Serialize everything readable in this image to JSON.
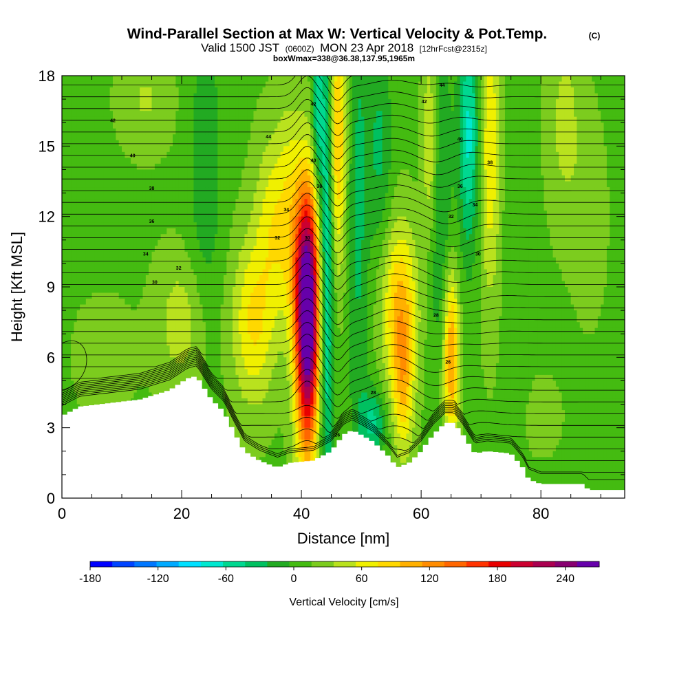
{
  "title": {
    "main": "Wind-Parallel Section at Max W: Vertical Velocity & Pot.Temp.",
    "copyright": "(C)",
    "line2_valid": "Valid 1500 JST",
    "line2_utc": "(0600Z)",
    "line2_date": "MON 23 Apr 2018",
    "line2_fcst": "[12hrFcst@2315z]",
    "line3": "boxWmax=338@36.38,137.95,1965m"
  },
  "chart_data": {
    "type": "heatmap",
    "xlabel": "Distance [nm]",
    "ylabel": "Height [Kft MSL]",
    "xlim": [
      0,
      94
    ],
    "ylim": [
      0,
      18
    ],
    "x_ticks": [
      0,
      20,
      40,
      60,
      80
    ],
    "y_ticks": [
      0,
      3,
      6,
      9,
      12,
      15,
      18
    ],
    "colorbar": {
      "label": "Vertical Velocity [cm/s]",
      "tick_labels": [
        "-180",
        "-120",
        "-60",
        "0",
        "60",
        "120",
        "180",
        "240"
      ],
      "tick_values": [
        -180,
        -120,
        -60,
        0,
        60,
        120,
        180,
        240
      ],
      "range": [
        -180,
        270
      ],
      "colors": [
        "#0000ff",
        "#0044ff",
        "#0077ff",
        "#00aaff",
        "#00e0ff",
        "#00e8d0",
        "#00d890",
        "#00c060",
        "#22aa22",
        "#44bb11",
        "#7ccc1e",
        "#b9e21e",
        "#f0f000",
        "#ffd800",
        "#ffb000",
        "#ff8c00",
        "#ff6600",
        "#ff3300",
        "#e80000",
        "#cc0030",
        "#aa0050",
        "#880070",
        "#6600aa"
      ]
    },
    "velocity_features": [
      {
        "x": 41.0,
        "y": 7.5,
        "sx": 1.4,
        "sy": 3.8,
        "w": 280
      },
      {
        "x": 39.5,
        "y": 10.0,
        "sx": 2.5,
        "sy": 2.5,
        "w": 50
      },
      {
        "x": 46.0,
        "y": 15.5,
        "sx": 1.0,
        "sy": 4.0,
        "w": 90
      },
      {
        "x": 44.2,
        "y": 10.0,
        "sx": 0.9,
        "sy": 8.0,
        "w": -90
      },
      {
        "x": 42.6,
        "y": 16.5,
        "sx": 0.6,
        "sy": 2.5,
        "w": -60
      },
      {
        "x": 49.5,
        "y": 12.0,
        "sx": 1.2,
        "sy": 8.0,
        "w": -40
      },
      {
        "x": 53.0,
        "y": 15.0,
        "sx": 1.5,
        "sy": 3.0,
        "w": -40
      },
      {
        "x": 52.0,
        "y": 3.2,
        "sx": 1.5,
        "sy": 1.0,
        "w": -60
      },
      {
        "x": 56.5,
        "y": 8.0,
        "sx": 2.0,
        "sy": 2.5,
        "w": 90
      },
      {
        "x": 57.0,
        "y": 4.5,
        "sx": 1.2,
        "sy": 2.0,
        "w": 60
      },
      {
        "x": 65.0,
        "y": 6.0,
        "sx": 0.9,
        "sy": 2.5,
        "w": 110
      },
      {
        "x": 61.5,
        "y": 15.0,
        "sx": 0.9,
        "sy": 3.0,
        "w": 60
      },
      {
        "x": 63.0,
        "y": 13.0,
        "sx": 1.5,
        "sy": 5.0,
        "w": -40
      },
      {
        "x": 68.0,
        "y": 15.5,
        "sx": 1.2,
        "sy": 3.5,
        "w": -80
      },
      {
        "x": 71.5,
        "y": 15.0,
        "sx": 1.2,
        "sy": 4.5,
        "w": 60
      },
      {
        "x": 32.0,
        "y": 7.5,
        "sx": 2.5,
        "sy": 2.5,
        "w": 65
      },
      {
        "x": 35.0,
        "y": 12.0,
        "sx": 2.0,
        "sy": 2.5,
        "w": 45
      },
      {
        "x": 38.0,
        "y": 14.0,
        "sx": 1.5,
        "sy": 2.5,
        "w": 30
      },
      {
        "x": 24.0,
        "y": 14.0,
        "sx": 2.0,
        "sy": 5.0,
        "w": -30
      },
      {
        "x": 20.0,
        "y": 7.5,
        "sx": 3.0,
        "sy": 2.0,
        "w": 35
      },
      {
        "x": 7.0,
        "y": 6.0,
        "sx": 4.0,
        "sy": 2.0,
        "w": 10
      },
      {
        "x": 14.0,
        "y": 17.0,
        "sx": 3.0,
        "sy": 1.5,
        "w": 25
      },
      {
        "x": 76.0,
        "y": 12.0,
        "sx": 1.5,
        "sy": 5.0,
        "w": -15
      },
      {
        "x": 84.0,
        "y": 16.0,
        "sx": 2.0,
        "sy": 3.0,
        "w": 30
      },
      {
        "x": 88.0,
        "y": 12.0,
        "sx": 2.0,
        "sy": 3.0,
        "w": 15
      },
      {
        "x": 80.0,
        "y": 3.5,
        "sx": 3.0,
        "sy": 1.5,
        "w": 8
      }
    ],
    "terrain_profile": [
      [
        0,
        3.5
      ],
      [
        3,
        3.9
      ],
      [
        13,
        4.2
      ],
      [
        18,
        4.6
      ],
      [
        21,
        5.1
      ],
      [
        22.5,
        5.2
      ],
      [
        25,
        4.2
      ],
      [
        27,
        3.7
      ],
      [
        29,
        2.7
      ],
      [
        30.5,
        2.0
      ],
      [
        33,
        1.6
      ],
      [
        36,
        1.3
      ],
      [
        38,
        1.5
      ],
      [
        42,
        1.6
      ],
      [
        45,
        2.0
      ],
      [
        47,
        2.7
      ],
      [
        48.5,
        2.9
      ],
      [
        50,
        2.7
      ],
      [
        52,
        2.4
      ],
      [
        54.5,
        1.8
      ],
      [
        56,
        1.3
      ],
      [
        58,
        1.5
      ],
      [
        60,
        2.0
      ],
      [
        62,
        2.7
      ],
      [
        64,
        3.2
      ],
      [
        65.5,
        3.2
      ],
      [
        67,
        2.7
      ],
      [
        69,
        1.9
      ],
      [
        71,
        2.0
      ],
      [
        75,
        1.9
      ],
      [
        77,
        1.3
      ],
      [
        78,
        0.8
      ],
      [
        80,
        0.6
      ],
      [
        87,
        0.6
      ],
      [
        88,
        0.35
      ],
      [
        94,
        0.35
      ]
    ],
    "theta_labels": [
      {
        "text": "42",
        "x": 8.5,
        "y": 16.1
      },
      {
        "text": "40",
        "x": 11.8,
        "y": 14.6
      },
      {
        "text": "38",
        "x": 15.0,
        "y": 13.2
      },
      {
        "text": "36",
        "x": 15.0,
        "y": 11.8
      },
      {
        "text": "34",
        "x": 14.0,
        "y": 10.4
      },
      {
        "text": "32",
        "x": 19.5,
        "y": 9.8
      },
      {
        "text": "30",
        "x": 15.5,
        "y": 9.2
      },
      {
        "text": "44",
        "x": 34.5,
        "y": 15.4
      },
      {
        "text": "42",
        "x": 42.0,
        "y": 16.8
      },
      {
        "text": "40",
        "x": 42.0,
        "y": 14.4
      },
      {
        "text": "38",
        "x": 43.0,
        "y": 13.3
      },
      {
        "text": "34",
        "x": 37.5,
        "y": 12.3
      },
      {
        "text": "32",
        "x": 36.0,
        "y": 11.1
      },
      {
        "text": "30",
        "x": 41.0,
        "y": 11.1
      },
      {
        "text": "44",
        "x": 63.5,
        "y": 17.6
      },
      {
        "text": "42",
        "x": 60.5,
        "y": 16.9
      },
      {
        "text": "40",
        "x": 66.5,
        "y": 15.3
      },
      {
        "text": "38",
        "x": 71.5,
        "y": 14.3
      },
      {
        "text": "36",
        "x": 66.5,
        "y": 13.3
      },
      {
        "text": "34",
        "x": 69.0,
        "y": 12.5
      },
      {
        "text": "32",
        "x": 65.0,
        "y": 12.0
      },
      {
        "text": "30",
        "x": 69.5,
        "y": 10.4
      },
      {
        "text": "28",
        "x": 62.5,
        "y": 7.8
      },
      {
        "text": "26",
        "x": 64.5,
        "y": 5.8
      },
      {
        "text": "28",
        "x": 52.0,
        "y": 4.5
      },
      {
        "text": "26",
        "x": 46.0,
        "y": 2.7
      }
    ]
  }
}
